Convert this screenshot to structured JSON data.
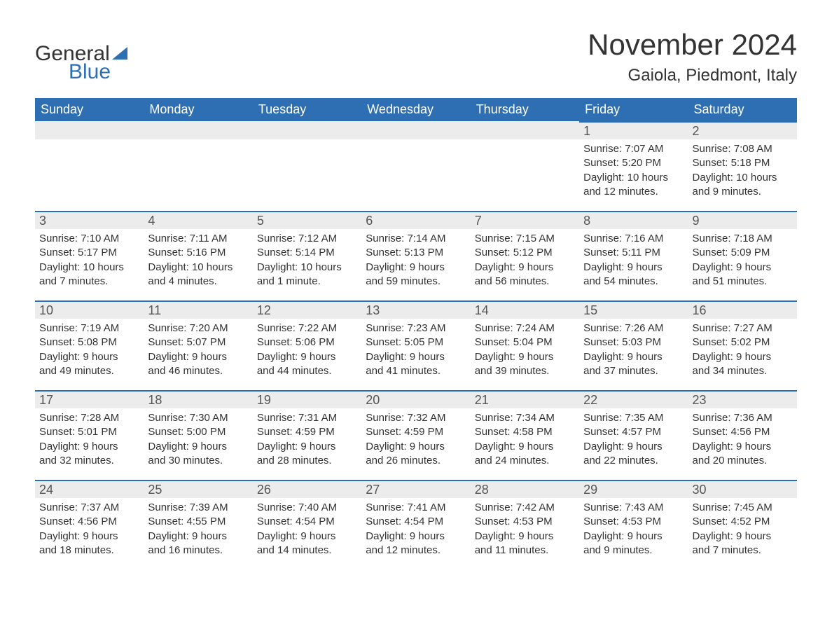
{
  "logo": {
    "text1": "General",
    "text2": "Blue"
  },
  "title": "November 2024",
  "location": "Gaiola, Piedmont, Italy",
  "colors": {
    "header_bg": "#2e6fb4",
    "header_text": "#ffffff",
    "daybar_bg": "#ececec",
    "daybar_border": "#2e6fb4",
    "text": "#333333",
    "logo_accent": "#2e6fb4"
  },
  "weekdays": [
    "Sunday",
    "Monday",
    "Tuesday",
    "Wednesday",
    "Thursday",
    "Friday",
    "Saturday"
  ],
  "weeks": [
    [
      {
        "blank": true
      },
      {
        "blank": true
      },
      {
        "blank": true
      },
      {
        "blank": true
      },
      {
        "blank": true
      },
      {
        "n": "1",
        "sunrise": "Sunrise: 7:07 AM",
        "sunset": "Sunset: 5:20 PM",
        "dl1": "Daylight: 10 hours",
        "dl2": "and 12 minutes."
      },
      {
        "n": "2",
        "sunrise": "Sunrise: 7:08 AM",
        "sunset": "Sunset: 5:18 PM",
        "dl1": "Daylight: 10 hours",
        "dl2": "and 9 minutes."
      }
    ],
    [
      {
        "n": "3",
        "sunrise": "Sunrise: 7:10 AM",
        "sunset": "Sunset: 5:17 PM",
        "dl1": "Daylight: 10 hours",
        "dl2": "and 7 minutes."
      },
      {
        "n": "4",
        "sunrise": "Sunrise: 7:11 AM",
        "sunset": "Sunset: 5:16 PM",
        "dl1": "Daylight: 10 hours",
        "dl2": "and 4 minutes."
      },
      {
        "n": "5",
        "sunrise": "Sunrise: 7:12 AM",
        "sunset": "Sunset: 5:14 PM",
        "dl1": "Daylight: 10 hours",
        "dl2": "and 1 minute."
      },
      {
        "n": "6",
        "sunrise": "Sunrise: 7:14 AM",
        "sunset": "Sunset: 5:13 PM",
        "dl1": "Daylight: 9 hours",
        "dl2": "and 59 minutes."
      },
      {
        "n": "7",
        "sunrise": "Sunrise: 7:15 AM",
        "sunset": "Sunset: 5:12 PM",
        "dl1": "Daylight: 9 hours",
        "dl2": "and 56 minutes."
      },
      {
        "n": "8",
        "sunrise": "Sunrise: 7:16 AM",
        "sunset": "Sunset: 5:11 PM",
        "dl1": "Daylight: 9 hours",
        "dl2": "and 54 minutes."
      },
      {
        "n": "9",
        "sunrise": "Sunrise: 7:18 AM",
        "sunset": "Sunset: 5:09 PM",
        "dl1": "Daylight: 9 hours",
        "dl2": "and 51 minutes."
      }
    ],
    [
      {
        "n": "10",
        "sunrise": "Sunrise: 7:19 AM",
        "sunset": "Sunset: 5:08 PM",
        "dl1": "Daylight: 9 hours",
        "dl2": "and 49 minutes."
      },
      {
        "n": "11",
        "sunrise": "Sunrise: 7:20 AM",
        "sunset": "Sunset: 5:07 PM",
        "dl1": "Daylight: 9 hours",
        "dl2": "and 46 minutes."
      },
      {
        "n": "12",
        "sunrise": "Sunrise: 7:22 AM",
        "sunset": "Sunset: 5:06 PM",
        "dl1": "Daylight: 9 hours",
        "dl2": "and 44 minutes."
      },
      {
        "n": "13",
        "sunrise": "Sunrise: 7:23 AM",
        "sunset": "Sunset: 5:05 PM",
        "dl1": "Daylight: 9 hours",
        "dl2": "and 41 minutes."
      },
      {
        "n": "14",
        "sunrise": "Sunrise: 7:24 AM",
        "sunset": "Sunset: 5:04 PM",
        "dl1": "Daylight: 9 hours",
        "dl2": "and 39 minutes."
      },
      {
        "n": "15",
        "sunrise": "Sunrise: 7:26 AM",
        "sunset": "Sunset: 5:03 PM",
        "dl1": "Daylight: 9 hours",
        "dl2": "and 37 minutes."
      },
      {
        "n": "16",
        "sunrise": "Sunrise: 7:27 AM",
        "sunset": "Sunset: 5:02 PM",
        "dl1": "Daylight: 9 hours",
        "dl2": "and 34 minutes."
      }
    ],
    [
      {
        "n": "17",
        "sunrise": "Sunrise: 7:28 AM",
        "sunset": "Sunset: 5:01 PM",
        "dl1": "Daylight: 9 hours",
        "dl2": "and 32 minutes."
      },
      {
        "n": "18",
        "sunrise": "Sunrise: 7:30 AM",
        "sunset": "Sunset: 5:00 PM",
        "dl1": "Daylight: 9 hours",
        "dl2": "and 30 minutes."
      },
      {
        "n": "19",
        "sunrise": "Sunrise: 7:31 AM",
        "sunset": "Sunset: 4:59 PM",
        "dl1": "Daylight: 9 hours",
        "dl2": "and 28 minutes."
      },
      {
        "n": "20",
        "sunrise": "Sunrise: 7:32 AM",
        "sunset": "Sunset: 4:59 PM",
        "dl1": "Daylight: 9 hours",
        "dl2": "and 26 minutes."
      },
      {
        "n": "21",
        "sunrise": "Sunrise: 7:34 AM",
        "sunset": "Sunset: 4:58 PM",
        "dl1": "Daylight: 9 hours",
        "dl2": "and 24 minutes."
      },
      {
        "n": "22",
        "sunrise": "Sunrise: 7:35 AM",
        "sunset": "Sunset: 4:57 PM",
        "dl1": "Daylight: 9 hours",
        "dl2": "and 22 minutes."
      },
      {
        "n": "23",
        "sunrise": "Sunrise: 7:36 AM",
        "sunset": "Sunset: 4:56 PM",
        "dl1": "Daylight: 9 hours",
        "dl2": "and 20 minutes."
      }
    ],
    [
      {
        "n": "24",
        "sunrise": "Sunrise: 7:37 AM",
        "sunset": "Sunset: 4:56 PM",
        "dl1": "Daylight: 9 hours",
        "dl2": "and 18 minutes."
      },
      {
        "n": "25",
        "sunrise": "Sunrise: 7:39 AM",
        "sunset": "Sunset: 4:55 PM",
        "dl1": "Daylight: 9 hours",
        "dl2": "and 16 minutes."
      },
      {
        "n": "26",
        "sunrise": "Sunrise: 7:40 AM",
        "sunset": "Sunset: 4:54 PM",
        "dl1": "Daylight: 9 hours",
        "dl2": "and 14 minutes."
      },
      {
        "n": "27",
        "sunrise": "Sunrise: 7:41 AM",
        "sunset": "Sunset: 4:54 PM",
        "dl1": "Daylight: 9 hours",
        "dl2": "and 12 minutes."
      },
      {
        "n": "28",
        "sunrise": "Sunrise: 7:42 AM",
        "sunset": "Sunset: 4:53 PM",
        "dl1": "Daylight: 9 hours",
        "dl2": "and 11 minutes."
      },
      {
        "n": "29",
        "sunrise": "Sunrise: 7:43 AM",
        "sunset": "Sunset: 4:53 PM",
        "dl1": "Daylight: 9 hours",
        "dl2": "and 9 minutes."
      },
      {
        "n": "30",
        "sunrise": "Sunrise: 7:45 AM",
        "sunset": "Sunset: 4:52 PM",
        "dl1": "Daylight: 9 hours",
        "dl2": "and 7 minutes."
      }
    ]
  ]
}
